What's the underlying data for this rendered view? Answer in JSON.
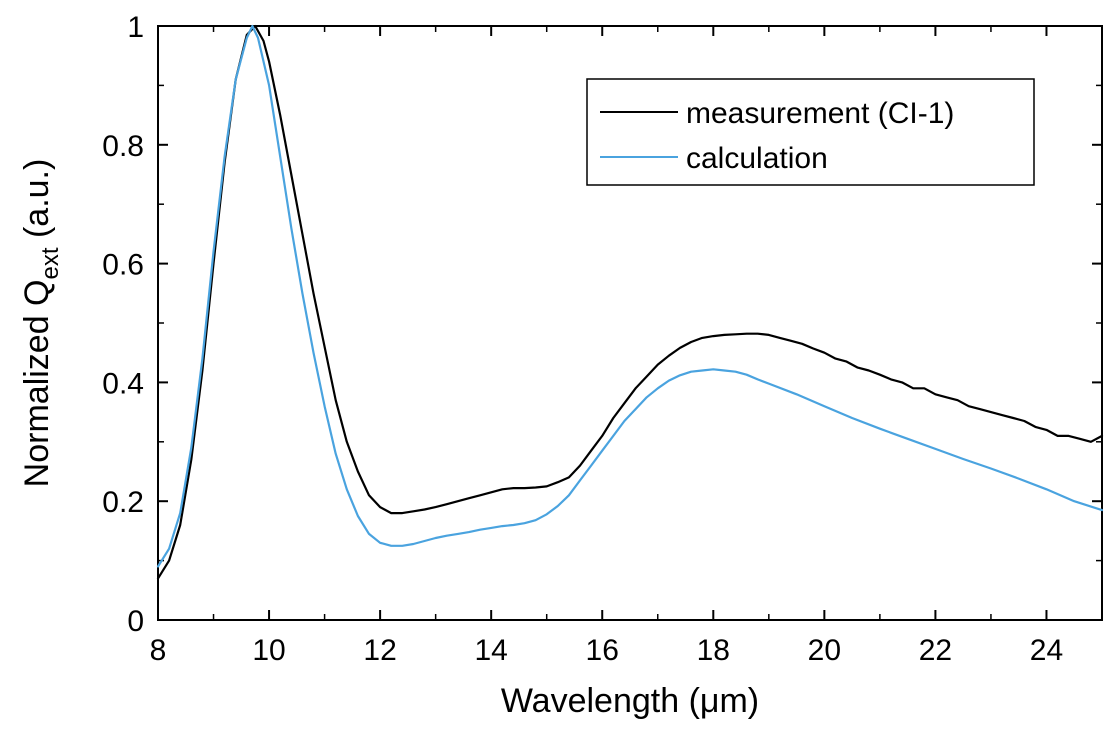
{
  "chart_data": {
    "type": "line",
    "title": "",
    "xlabel": "Wavelength (μm)",
    "ylabel": {
      "main": "Normalized Q",
      "subscript": "ext",
      "unit": " (a.u.)"
    },
    "xlim": [
      8,
      25
    ],
    "ylim": [
      0,
      1
    ],
    "xticks": [
      8,
      10,
      12,
      14,
      16,
      18,
      20,
      22,
      24
    ],
    "yticks": [
      0,
      0.2,
      0.4,
      0.6,
      0.8,
      1
    ],
    "ytick_labels": [
      "0",
      "0.2",
      "0.4",
      "0.6",
      "0.8",
      "1"
    ],
    "grid": false,
    "legend_position": "top-right",
    "series": [
      {
        "name": "measurement (CI-1)",
        "color": "#000000",
        "x": [
          8.0,
          8.2,
          8.4,
          8.6,
          8.8,
          9.0,
          9.2,
          9.4,
          9.6,
          9.75,
          9.9,
          10.0,
          10.2,
          10.4,
          10.6,
          10.8,
          11.0,
          11.2,
          11.4,
          11.6,
          11.8,
          12.0,
          12.2,
          12.4,
          12.6,
          12.8,
          13.0,
          13.2,
          13.4,
          13.6,
          13.8,
          14.0,
          14.2,
          14.4,
          14.6,
          14.8,
          15.0,
          15.2,
          15.4,
          15.6,
          15.8,
          16.0,
          16.2,
          16.4,
          16.6,
          16.8,
          17.0,
          17.2,
          17.4,
          17.6,
          17.8,
          18.0,
          18.2,
          18.4,
          18.6,
          18.8,
          19.0,
          19.2,
          19.4,
          19.6,
          19.8,
          20.0,
          20.2,
          20.4,
          20.6,
          20.8,
          21.0,
          21.2,
          21.4,
          21.6,
          21.8,
          22.0,
          22.2,
          22.4,
          22.6,
          22.8,
          23.0,
          23.2,
          23.4,
          23.6,
          23.8,
          24.0,
          24.2,
          24.4,
          24.6,
          24.8,
          25.0
        ],
        "y": [
          0.07,
          0.1,
          0.16,
          0.27,
          0.42,
          0.6,
          0.77,
          0.91,
          0.985,
          1.0,
          0.975,
          0.94,
          0.85,
          0.75,
          0.65,
          0.55,
          0.46,
          0.37,
          0.3,
          0.25,
          0.21,
          0.19,
          0.18,
          0.18,
          0.183,
          0.186,
          0.19,
          0.195,
          0.2,
          0.205,
          0.21,
          0.215,
          0.22,
          0.222,
          0.222,
          0.223,
          0.225,
          0.232,
          0.24,
          0.26,
          0.285,
          0.31,
          0.34,
          0.365,
          0.39,
          0.41,
          0.43,
          0.445,
          0.458,
          0.468,
          0.475,
          0.478,
          0.48,
          0.481,
          0.482,
          0.482,
          0.48,
          0.475,
          0.47,
          0.465,
          0.457,
          0.45,
          0.44,
          0.435,
          0.425,
          0.42,
          0.413,
          0.405,
          0.4,
          0.39,
          0.39,
          0.38,
          0.375,
          0.37,
          0.36,
          0.355,
          0.35,
          0.345,
          0.34,
          0.335,
          0.325,
          0.32,
          0.31,
          0.31,
          0.305,
          0.3,
          0.31
        ]
      },
      {
        "name": "calculation",
        "color": "#4aa3df",
        "x": [
          8.0,
          8.2,
          8.4,
          8.6,
          8.8,
          9.0,
          9.2,
          9.4,
          9.6,
          9.7,
          9.8,
          10.0,
          10.2,
          10.4,
          10.6,
          10.8,
          11.0,
          11.2,
          11.4,
          11.6,
          11.8,
          12.0,
          12.2,
          12.4,
          12.6,
          12.8,
          13.0,
          13.2,
          13.4,
          13.6,
          13.8,
          14.0,
          14.2,
          14.4,
          14.6,
          14.8,
          15.0,
          15.2,
          15.4,
          15.6,
          15.8,
          16.0,
          16.2,
          16.4,
          16.6,
          16.8,
          17.0,
          17.2,
          17.4,
          17.6,
          17.8,
          18.0,
          18.2,
          18.4,
          18.6,
          18.8,
          19.0,
          19.5,
          20.0,
          20.5,
          21.0,
          21.5,
          22.0,
          22.5,
          23.0,
          23.5,
          24.0,
          24.5,
          25.0
        ],
        "y": [
          0.09,
          0.12,
          0.18,
          0.29,
          0.44,
          0.62,
          0.78,
          0.91,
          0.98,
          1.0,
          0.98,
          0.9,
          0.78,
          0.66,
          0.55,
          0.45,
          0.36,
          0.28,
          0.22,
          0.175,
          0.145,
          0.13,
          0.125,
          0.125,
          0.128,
          0.133,
          0.138,
          0.142,
          0.145,
          0.148,
          0.152,
          0.155,
          0.158,
          0.16,
          0.163,
          0.168,
          0.178,
          0.192,
          0.21,
          0.235,
          0.26,
          0.285,
          0.31,
          0.335,
          0.355,
          0.375,
          0.39,
          0.403,
          0.412,
          0.418,
          0.42,
          0.422,
          0.42,
          0.418,
          0.413,
          0.405,
          0.398,
          0.38,
          0.36,
          0.34,
          0.322,
          0.305,
          0.288,
          0.271,
          0.255,
          0.238,
          0.22,
          0.2,
          0.185
        ]
      }
    ]
  }
}
